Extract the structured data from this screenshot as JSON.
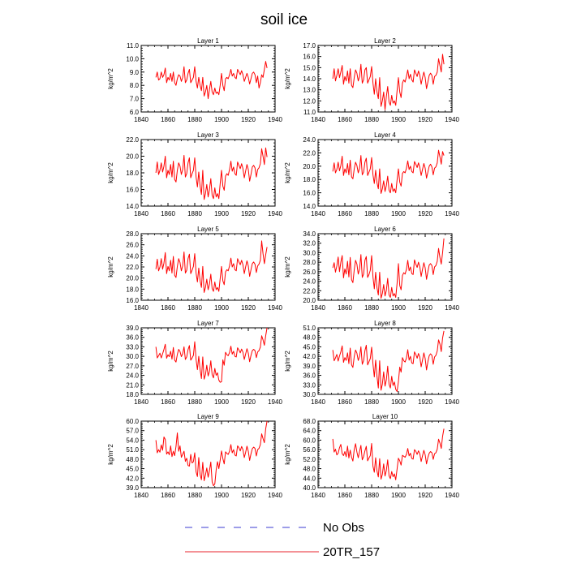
{
  "title": "soil ice",
  "legend": [
    {
      "label": "No Obs",
      "color": "#3b3bd0",
      "dash": true
    },
    {
      "label": "20TR_157",
      "color": "#e8262c",
      "dash": false
    }
  ],
  "colors": {
    "series": "#ff0000"
  },
  "chart_data": [
    {
      "type": "line",
      "title": "Layer 1",
      "ylabel": "kg/m^2",
      "xlim": [
        1840,
        1940
      ],
      "ylim": [
        6.0,
        11.0
      ],
      "xticks": [
        1840,
        1860,
        1880,
        1900,
        1920,
        1940
      ],
      "xtick_labels": [
        "1840",
        "1860",
        "1880",
        "1900",
        "1920",
        "1940"
      ],
      "yticks": [
        6,
        7,
        8,
        9,
        10,
        11
      ],
      "ytick_labels": [
        "6.0",
        "7.0",
        "8.0",
        "9.0",
        "10.0",
        "11.0"
      ],
      "x_start": 1851,
      "values": [
        8.6,
        9.0,
        8.4,
        8.5,
        9.0,
        8.6,
        8.8,
        9.3,
        8.2,
        8.6,
        8.4,
        8.9,
        8.3,
        9.0,
        8.2,
        8.0,
        8.5,
        8.8,
        8.7,
        8.3,
        8.6,
        9.4,
        8.2,
        8.4,
        8.9,
        9.2,
        8.2,
        8.4,
        8.6,
        9.4,
        8.3,
        7.8,
        8.6,
        8.0,
        7.6,
        8.6,
        7.2,
        7.5,
        8.0,
        7.0,
        7.7,
        8.3,
        7.5,
        7.3,
        7.8,
        7.4,
        7.5,
        7.3,
        8.0,
        8.9,
        8.0,
        7.6,
        8.5,
        8.6,
        8.5,
        8.8,
        9.2,
        8.7,
        8.9,
        8.6,
        8.5,
        9.2,
        9.0,
        8.8,
        9.1,
        8.8,
        8.3,
        8.6,
        8.9,
        8.6,
        8.1,
        8.5,
        8.9,
        9.0,
        8.8,
        8.2,
        8.7,
        7.8,
        8.2,
        8.8,
        8.6,
        9.2,
        9.8,
        9.3
      ]
    },
    {
      "type": "line",
      "title": "Layer 2",
      "ylabel": "kg/m^2",
      "xlim": [
        1840,
        1940
      ],
      "ylim": [
        11.0,
        17.0
      ],
      "xticks": [
        1840,
        1860,
        1880,
        1900,
        1920,
        1940
      ],
      "xtick_labels": [
        "1840",
        "1860",
        "1880",
        "1900",
        "1920",
        "1940"
      ],
      "yticks": [
        11,
        12,
        13,
        14,
        15,
        16,
        17
      ],
      "ytick_labels": [
        "11.0",
        "12.0",
        "13.0",
        "14.0",
        "15.0",
        "16.0",
        "17.0"
      ],
      "x_start": 1851,
      "values": [
        14.0,
        14.9,
        13.8,
        14.3,
        14.9,
        14.1,
        14.6,
        15.2,
        13.5,
        14.2,
        13.8,
        14.7,
        13.6,
        14.9,
        13.4,
        13.2,
        14.1,
        14.8,
        14.5,
        13.8,
        14.2,
        15.3,
        13.6,
        13.9,
        14.8,
        15.0,
        13.6,
        13.9,
        14.2,
        15.1,
        13.6,
        12.6,
        14.0,
        12.8,
        12.2,
        14.1,
        11.5,
        12.0,
        12.8,
        11.2,
        12.4,
        13.3,
        11.9,
        11.6,
        12.5,
        11.8,
        12.0,
        11.6,
        12.9,
        14.1,
        12.8,
        12.3,
        13.6,
        13.9,
        13.7,
        14.2,
        14.8,
        14.0,
        14.4,
        13.9,
        13.7,
        14.8,
        14.5,
        14.2,
        14.7,
        14.3,
        13.5,
        14.1,
        14.6,
        14.1,
        13.1,
        13.7,
        14.3,
        14.5,
        14.3,
        13.5,
        14.2,
        14.3,
        14.6,
        15.8,
        15.2,
        14.6,
        16.2,
        15.3
      ]
    },
    {
      "type": "line",
      "title": "Layer 3",
      "ylabel": "kg/m^2",
      "xlim": [
        1840,
        1940
      ],
      "ylim": [
        14.0,
        22.0
      ],
      "xticks": [
        1840,
        1860,
        1880,
        1900,
        1920,
        1940
      ],
      "xtick_labels": [
        "1840",
        "1860",
        "1880",
        "1900",
        "1920",
        "1940"
      ],
      "yticks": [
        14,
        16,
        18,
        20,
        22
      ],
      "ytick_labels": [
        "14.0",
        "16.0",
        "18.0",
        "20.0",
        "22.0"
      ],
      "x_start": 1851,
      "values": [
        18.0,
        19.3,
        17.8,
        18.3,
        19.2,
        18.1,
        18.8,
        20.0,
        17.4,
        18.3,
        17.8,
        19.0,
        17.5,
        19.4,
        17.2,
        16.9,
        18.3,
        19.2,
        18.8,
        17.8,
        18.4,
        20.1,
        17.5,
        17.9,
        19.2,
        19.8,
        17.4,
        17.9,
        18.3,
        19.8,
        17.5,
        16.3,
        18.1,
        16.4,
        15.4,
        18.3,
        14.8,
        15.5,
        16.6,
        15.1,
        16.0,
        17.3,
        15.3,
        14.9,
        16.2,
        15.1,
        15.5,
        14.9,
        16.7,
        18.3,
        16.4,
        15.9,
        17.6,
        17.9,
        17.7,
        18.4,
        19.4,
        18.2,
        18.7,
        17.9,
        17.7,
        19.3,
        18.9,
        18.5,
        19.1,
        18.5,
        17.4,
        18.2,
        19.0,
        18.4,
        17.0,
        17.8,
        18.7,
        18.9,
        18.6,
        17.5,
        18.4,
        18.6,
        19.1,
        20.9,
        20.0,
        19.0,
        21.0,
        19.9
      ]
    },
    {
      "type": "line",
      "title": "Layer 4",
      "ylabel": "kg/m^2",
      "xlim": [
        1840,
        1940
      ],
      "ylim": [
        14.0,
        24.0
      ],
      "xticks": [
        1840,
        1860,
        1880,
        1900,
        1920,
        1940
      ],
      "xtick_labels": [
        "1840",
        "1860",
        "1880",
        "1900",
        "1920",
        "1940"
      ],
      "yticks": [
        14,
        16,
        18,
        20,
        22,
        24
      ],
      "ytick_labels": [
        "14.0",
        "16.0",
        "18.0",
        "20.0",
        "22.0",
        "24.0"
      ],
      "x_start": 1851,
      "values": [
        19.2,
        20.5,
        19.0,
        19.5,
        20.6,
        19.3,
        20.1,
        21.5,
        18.6,
        19.6,
        19.0,
        20.4,
        18.7,
        20.9,
        18.4,
        18.1,
        19.6,
        20.6,
        20.1,
        19.0,
        19.7,
        21.6,
        18.7,
        19.1,
        20.6,
        21.2,
        18.6,
        19.1,
        19.6,
        21.3,
        18.7,
        17.4,
        19.4,
        17.5,
        16.6,
        19.6,
        15.9,
        16.6,
        17.8,
        16.2,
        17.1,
        18.5,
        16.4,
        16.0,
        17.4,
        16.2,
        16.6,
        16.0,
        17.9,
        19.6,
        17.6,
        17.0,
        18.9,
        19.2,
        19.0,
        19.7,
        20.8,
        19.5,
        20.0,
        19.2,
        19.0,
        20.7,
        20.3,
        19.8,
        20.5,
        19.8,
        18.6,
        19.5,
        20.4,
        19.7,
        18.2,
        19.1,
        20.0,
        20.3,
        19.9,
        18.7,
        19.7,
        19.9,
        20.5,
        22.4,
        21.4,
        20.3,
        22.2,
        21.6
      ]
    },
    {
      "type": "line",
      "title": "Layer 5",
      "ylabel": "kg/m^2",
      "xlim": [
        1840,
        1940
      ],
      "ylim": [
        16.0,
        28.0
      ],
      "xticks": [
        1840,
        1860,
        1880,
        1900,
        1920,
        1940
      ],
      "xtick_labels": [
        "1840",
        "1860",
        "1880",
        "1900",
        "1920",
        "1940"
      ],
      "yticks": [
        16,
        18,
        20,
        22,
        24,
        26,
        28
      ],
      "ytick_labels": [
        "16.0",
        "18.0",
        "20.0",
        "22.0",
        "24.0",
        "26.0",
        "28.0"
      ],
      "x_start": 1851,
      "values": [
        21.6,
        23.4,
        21.3,
        22.0,
        23.5,
        21.6,
        22.7,
        24.6,
        20.8,
        22.1,
        21.3,
        23.2,
        20.9,
        23.9,
        20.5,
        20.1,
        22.1,
        23.5,
        22.8,
        21.3,
        22.2,
        24.7,
        20.9,
        21.4,
        23.5,
        24.3,
        20.8,
        21.4,
        22.1,
        24.4,
        20.9,
        19.3,
        21.8,
        19.5,
        18.3,
        22.1,
        17.4,
        18.3,
        19.8,
        17.9,
        18.9,
        20.7,
        18.1,
        17.6,
        19.3,
        17.9,
        18.3,
        17.6,
        19.9,
        22.1,
        19.5,
        18.8,
        21.1,
        21.5,
        21.3,
        22.2,
        23.6,
        22.0,
        22.6,
        21.5,
        21.3,
        23.5,
        22.9,
        22.4,
        23.2,
        22.4,
        20.8,
        22.0,
        23.1,
        22.2,
        20.3,
        21.5,
        22.6,
        22.9,
        22.5,
        21.0,
        22.2,
        22.5,
        23.2,
        26.7,
        24.4,
        22.6,
        24.2,
        25.6
      ]
    },
    {
      "type": "line",
      "title": "Layer 6",
      "ylabel": "kg/m^2",
      "xlim": [
        1840,
        1940
      ],
      "ylim": [
        20.0,
        34.0
      ],
      "xticks": [
        1840,
        1860,
        1880,
        1900,
        1920,
        1940
      ],
      "xtick_labels": [
        "1840",
        "1860",
        "1880",
        "1900",
        "1920",
        "1940"
      ],
      "yticks": [
        20,
        22,
        24,
        26,
        28,
        30,
        32,
        34
      ],
      "ytick_labels": [
        "20.0",
        "22.0",
        "24.0",
        "26.0",
        "28.0",
        "30.0",
        "32.0",
        "34.0"
      ],
      "x_start": 1851,
      "values": [
        26.8,
        27.9,
        25.9,
        27.2,
        29.1,
        26.0,
        28.0,
        29.4,
        24.7,
        26.6,
        25.5,
        28.2,
        24.9,
        29.0,
        24.3,
        23.7,
        26.4,
        28.4,
        27.6,
        25.5,
        26.6,
        29.6,
        24.8,
        25.5,
        28.4,
        29.2,
        24.8,
        25.4,
        26.3,
        29.4,
        24.9,
        22.4,
        25.9,
        22.6,
        21.1,
        25.9,
        20.4,
        21.4,
        23.3,
        20.9,
        22.1,
        24.6,
        21.1,
        20.6,
        22.7,
        20.9,
        21.4,
        20.6,
        23.5,
        27.7,
        23.1,
        22.2,
        25.2,
        25.8,
        25.5,
        26.5,
        28.4,
        26.2,
        27.0,
        25.6,
        25.4,
        28.5,
        27.6,
        26.9,
        28.0,
        27.0,
        25.0,
        26.5,
        27.9,
        26.8,
        24.4,
        26.0,
        27.4,
        27.7,
        27.3,
        25.4,
        27.0,
        27.3,
        28.2,
        30.9,
        29.0,
        27.6,
        30.0,
        33.0
      ]
    },
    {
      "type": "line",
      "title": "Layer 7",
      "ylabel": "kg/m^2",
      "xlim": [
        1840,
        1940
      ],
      "ylim": [
        18.0,
        39.0
      ],
      "xticks": [
        1840,
        1860,
        1880,
        1900,
        1920,
        1940
      ],
      "xtick_labels": [
        "1840",
        "1860",
        "1880",
        "1900",
        "1920",
        "1940"
      ],
      "yticks": [
        18,
        21,
        24,
        27,
        30,
        33,
        36,
        39
      ],
      "ytick_labels": [
        "18.0",
        "21.0",
        "24.0",
        "27.0",
        "30.0",
        "33.0",
        "36.0",
        "39.0"
      ],
      "x_start": 1851,
      "values": [
        33.0,
        29.5,
        30.2,
        31.0,
        29.5,
        30.8,
        32.2,
        33.8,
        29.4,
        30.5,
        29.9,
        31.6,
        29.1,
        32.8,
        28.8,
        28.2,
        30.6,
        32.2,
        31.5,
        29.9,
        30.8,
        33.0,
        29.0,
        29.8,
        32.1,
        33.4,
        28.8,
        29.5,
        30.3,
        34.6,
        29.0,
        25.8,
        30.0,
        25.8,
        23.0,
        29.8,
        22.8,
        24.2,
        27.2,
        23.8,
        25.3,
        28.6,
        24.2,
        23.2,
        26.2,
        24.0,
        24.8,
        22.5,
        21.8,
        22.0,
        28.9,
        27.2,
        31.3,
        30.5,
        30.2,
        31.2,
        33.2,
        30.7,
        31.6,
        30.0,
        29.8,
        32.7,
        32.0,
        31.1,
        32.3,
        31.3,
        29.0,
        30.7,
        32.4,
        31.0,
        28.3,
        30.3,
        31.8,
        32.2,
        31.8,
        29.6,
        31.4,
        31.8,
        32.9,
        36.5,
        35.2,
        33.5,
        36.5,
        39.0
      ]
    },
    {
      "type": "line",
      "title": "Layer 8",
      "ylabel": "kg/m^2",
      "xlim": [
        1840,
        1940
      ],
      "ylim": [
        30.0,
        51.0
      ],
      "xticks": [
        1840,
        1860,
        1880,
        1900,
        1920,
        1940
      ],
      "xtick_labels": [
        "1840",
        "1860",
        "1880",
        "1900",
        "1920",
        "1940"
      ],
      "yticks": [
        30,
        33,
        36,
        39,
        42,
        45,
        48,
        51
      ],
      "ytick_labels": [
        "30.0",
        "33.0",
        "36.0",
        "39.0",
        "42.0",
        "45.0",
        "48.0",
        "51.0"
      ],
      "x_start": 1851,
      "values": [
        44.0,
        40.6,
        41.5,
        42.6,
        40.5,
        42.1,
        43.4,
        45.3,
        40.1,
        41.6,
        40.7,
        43.1,
        39.7,
        44.6,
        39.3,
        38.5,
        41.9,
        44.0,
        43.0,
        40.7,
        42.0,
        45.0,
        39.5,
        40.6,
        43.8,
        45.5,
        39.3,
        40.3,
        41.3,
        44.9,
        39.6,
        35.5,
        40.8,
        35.7,
        32.0,
        40.6,
        31.3,
        33.2,
        37.1,
        32.6,
        34.6,
        38.9,
        33.2,
        32.0,
        35.7,
        32.8,
        33.9,
        31.6,
        30.9,
        34.0,
        38.6,
        37.0,
        41.6,
        40.6,
        40.2,
        41.5,
        44.1,
        40.8,
        42.0,
        39.9,
        39.7,
        43.4,
        42.6,
        41.4,
        42.9,
        41.7,
        38.7,
        40.8,
        43.1,
        41.3,
        37.7,
        40.3,
        42.2,
        42.8,
        42.3,
        39.5,
        41.8,
        42.3,
        43.7,
        47.2,
        45.9,
        43.5,
        47.8,
        50.0
      ]
    },
    {
      "type": "line",
      "title": "Layer 9",
      "ylabel": "kg/m^2",
      "xlim": [
        1840,
        1940
      ],
      "ylim": [
        39.0,
        60.0
      ],
      "xticks": [
        1840,
        1860,
        1880,
        1900,
        1920,
        1940
      ],
      "xtick_labels": [
        "1840",
        "1860",
        "1880",
        "1900",
        "1920",
        "1940"
      ],
      "yticks": [
        39,
        42,
        45,
        48,
        51,
        54,
        57,
        60
      ],
      "ytick_labels": [
        "39.0",
        "42.0",
        "45.0",
        "48.0",
        "51.0",
        "54.0",
        "57.0",
        "60.0"
      ],
      "x_start": 1851,
      "values": [
        54.0,
        50.0,
        51.0,
        50.2,
        52.5,
        50.8,
        55.0,
        54.2,
        49.6,
        50.3,
        49.4,
        52.2,
        48.8,
        50.5,
        49.1,
        52.0,
        56.3,
        50.5,
        52.2,
        48.6,
        49.5,
        50.5,
        47.3,
        48.3,
        46.0,
        45.8,
        49.5,
        46.8,
        47.2,
        50.0,
        44.0,
        42.5,
        48.5,
        43.2,
        41.5,
        47.0,
        41.2,
        43.0,
        45.2,
        42.3,
        44.4,
        47.1,
        40.8,
        39.6,
        40.2,
        44.6,
        47.2,
        45.0,
        47.7,
        50.6,
        48.2,
        46.5,
        50.3,
        49.8,
        49.5,
        50.5,
        52.6,
        50.0,
        51.0,
        49.3,
        49.0,
        52.2,
        51.6,
        50.6,
        52.0,
        51.0,
        48.5,
        50.1,
        52.1,
        50.5,
        47.6,
        49.7,
        51.3,
        51.8,
        51.4,
        49.0,
        51.0,
        51.4,
        52.6,
        56.0,
        54.5,
        53.2,
        57.6,
        60.0
      ]
    },
    {
      "type": "line",
      "title": "Layer 10",
      "ylabel": "kg/m^2",
      "xlim": [
        1840,
        1940
      ],
      "ylim": [
        40.0,
        68.0
      ],
      "xticks": [
        1840,
        1860,
        1880,
        1900,
        1920,
        1940
      ],
      "xtick_labels": [
        "1840",
        "1860",
        "1880",
        "1900",
        "1920",
        "1940"
      ],
      "yticks": [
        40,
        44,
        48,
        52,
        56,
        60,
        64,
        68
      ],
      "ytick_labels": [
        "40.0",
        "44.0",
        "48.0",
        "52.0",
        "56.0",
        "60.0",
        "64.0",
        "68.0"
      ],
      "x_start": 1851,
      "values": [
        60.5,
        55.0,
        56.2,
        53.8,
        54.5,
        56.8,
        58.2,
        54.3,
        53.5,
        55.2,
        53.0,
        57.5,
        52.5,
        55.8,
        52.8,
        51.2,
        56.0,
        58.5,
        55.0,
        52.6,
        55.3,
        57.8,
        51.7,
        53.1,
        55.5,
        57.4,
        51.3,
        52.5,
        53.5,
        58.6,
        49.0,
        46.5,
        52.6,
        47.0,
        44.5,
        52.2,
        43.6,
        45.6,
        50.0,
        44.9,
        47.3,
        51.7,
        45.0,
        43.8,
        46.8,
        44.6,
        45.8,
        43.3,
        47.8,
        52.4,
        51.3,
        49.5,
        53.6,
        53.2,
        52.8,
        54.0,
        56.5,
        53.4,
        54.5,
        52.3,
        52.0,
        56.0,
        55.3,
        54.0,
        55.5,
        54.2,
        51.0,
        53.4,
        55.7,
        53.8,
        50.0,
        52.7,
        54.5,
        55.2,
        54.7,
        51.9,
        54.3,
        54.7,
        56.2,
        60.4,
        58.8,
        56.5,
        61.6,
        64.8
      ]
    }
  ]
}
